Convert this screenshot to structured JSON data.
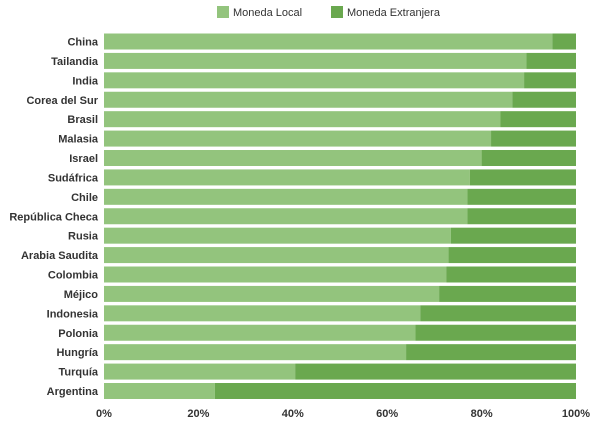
{
  "chart_data": {
    "type": "bar",
    "orientation": "horizontal",
    "stacked": true,
    "percent": true,
    "categories": [
      "China",
      "Tailandia",
      "India",
      "Corea del Sur",
      "Brasil",
      "Malasia",
      "Israel",
      "Sudáfrica",
      "Chile",
      "República Checa",
      "Rusia",
      "Arabia Saudita",
      "Colombia",
      "Méjico",
      "Indonesia",
      "Polonia",
      "Hungría",
      "Turquía",
      "Argentina"
    ],
    "series": [
      {
        "name": "Moneda Local",
        "color": "#93c47d",
        "values": [
          95,
          89.5,
          89,
          86.5,
          84,
          82,
          80,
          77.5,
          77,
          77,
          73.5,
          73,
          72.5,
          71,
          67,
          66,
          64,
          40.5,
          23.5
        ]
      },
      {
        "name": "Moneda Extranjera",
        "color": "#6aa84f",
        "values": [
          5,
          10.5,
          11,
          13.5,
          16,
          18,
          20,
          22.5,
          23,
          23,
          26.5,
          27,
          27.5,
          29,
          33,
          34,
          36,
          59.5,
          76.5
        ]
      }
    ],
    "xlim": [
      0,
      100
    ],
    "xticks": [
      "0%",
      "20%",
      "40%",
      "60%",
      "80%",
      "100%"
    ],
    "legend_position": "top-center",
    "grid": false
  }
}
